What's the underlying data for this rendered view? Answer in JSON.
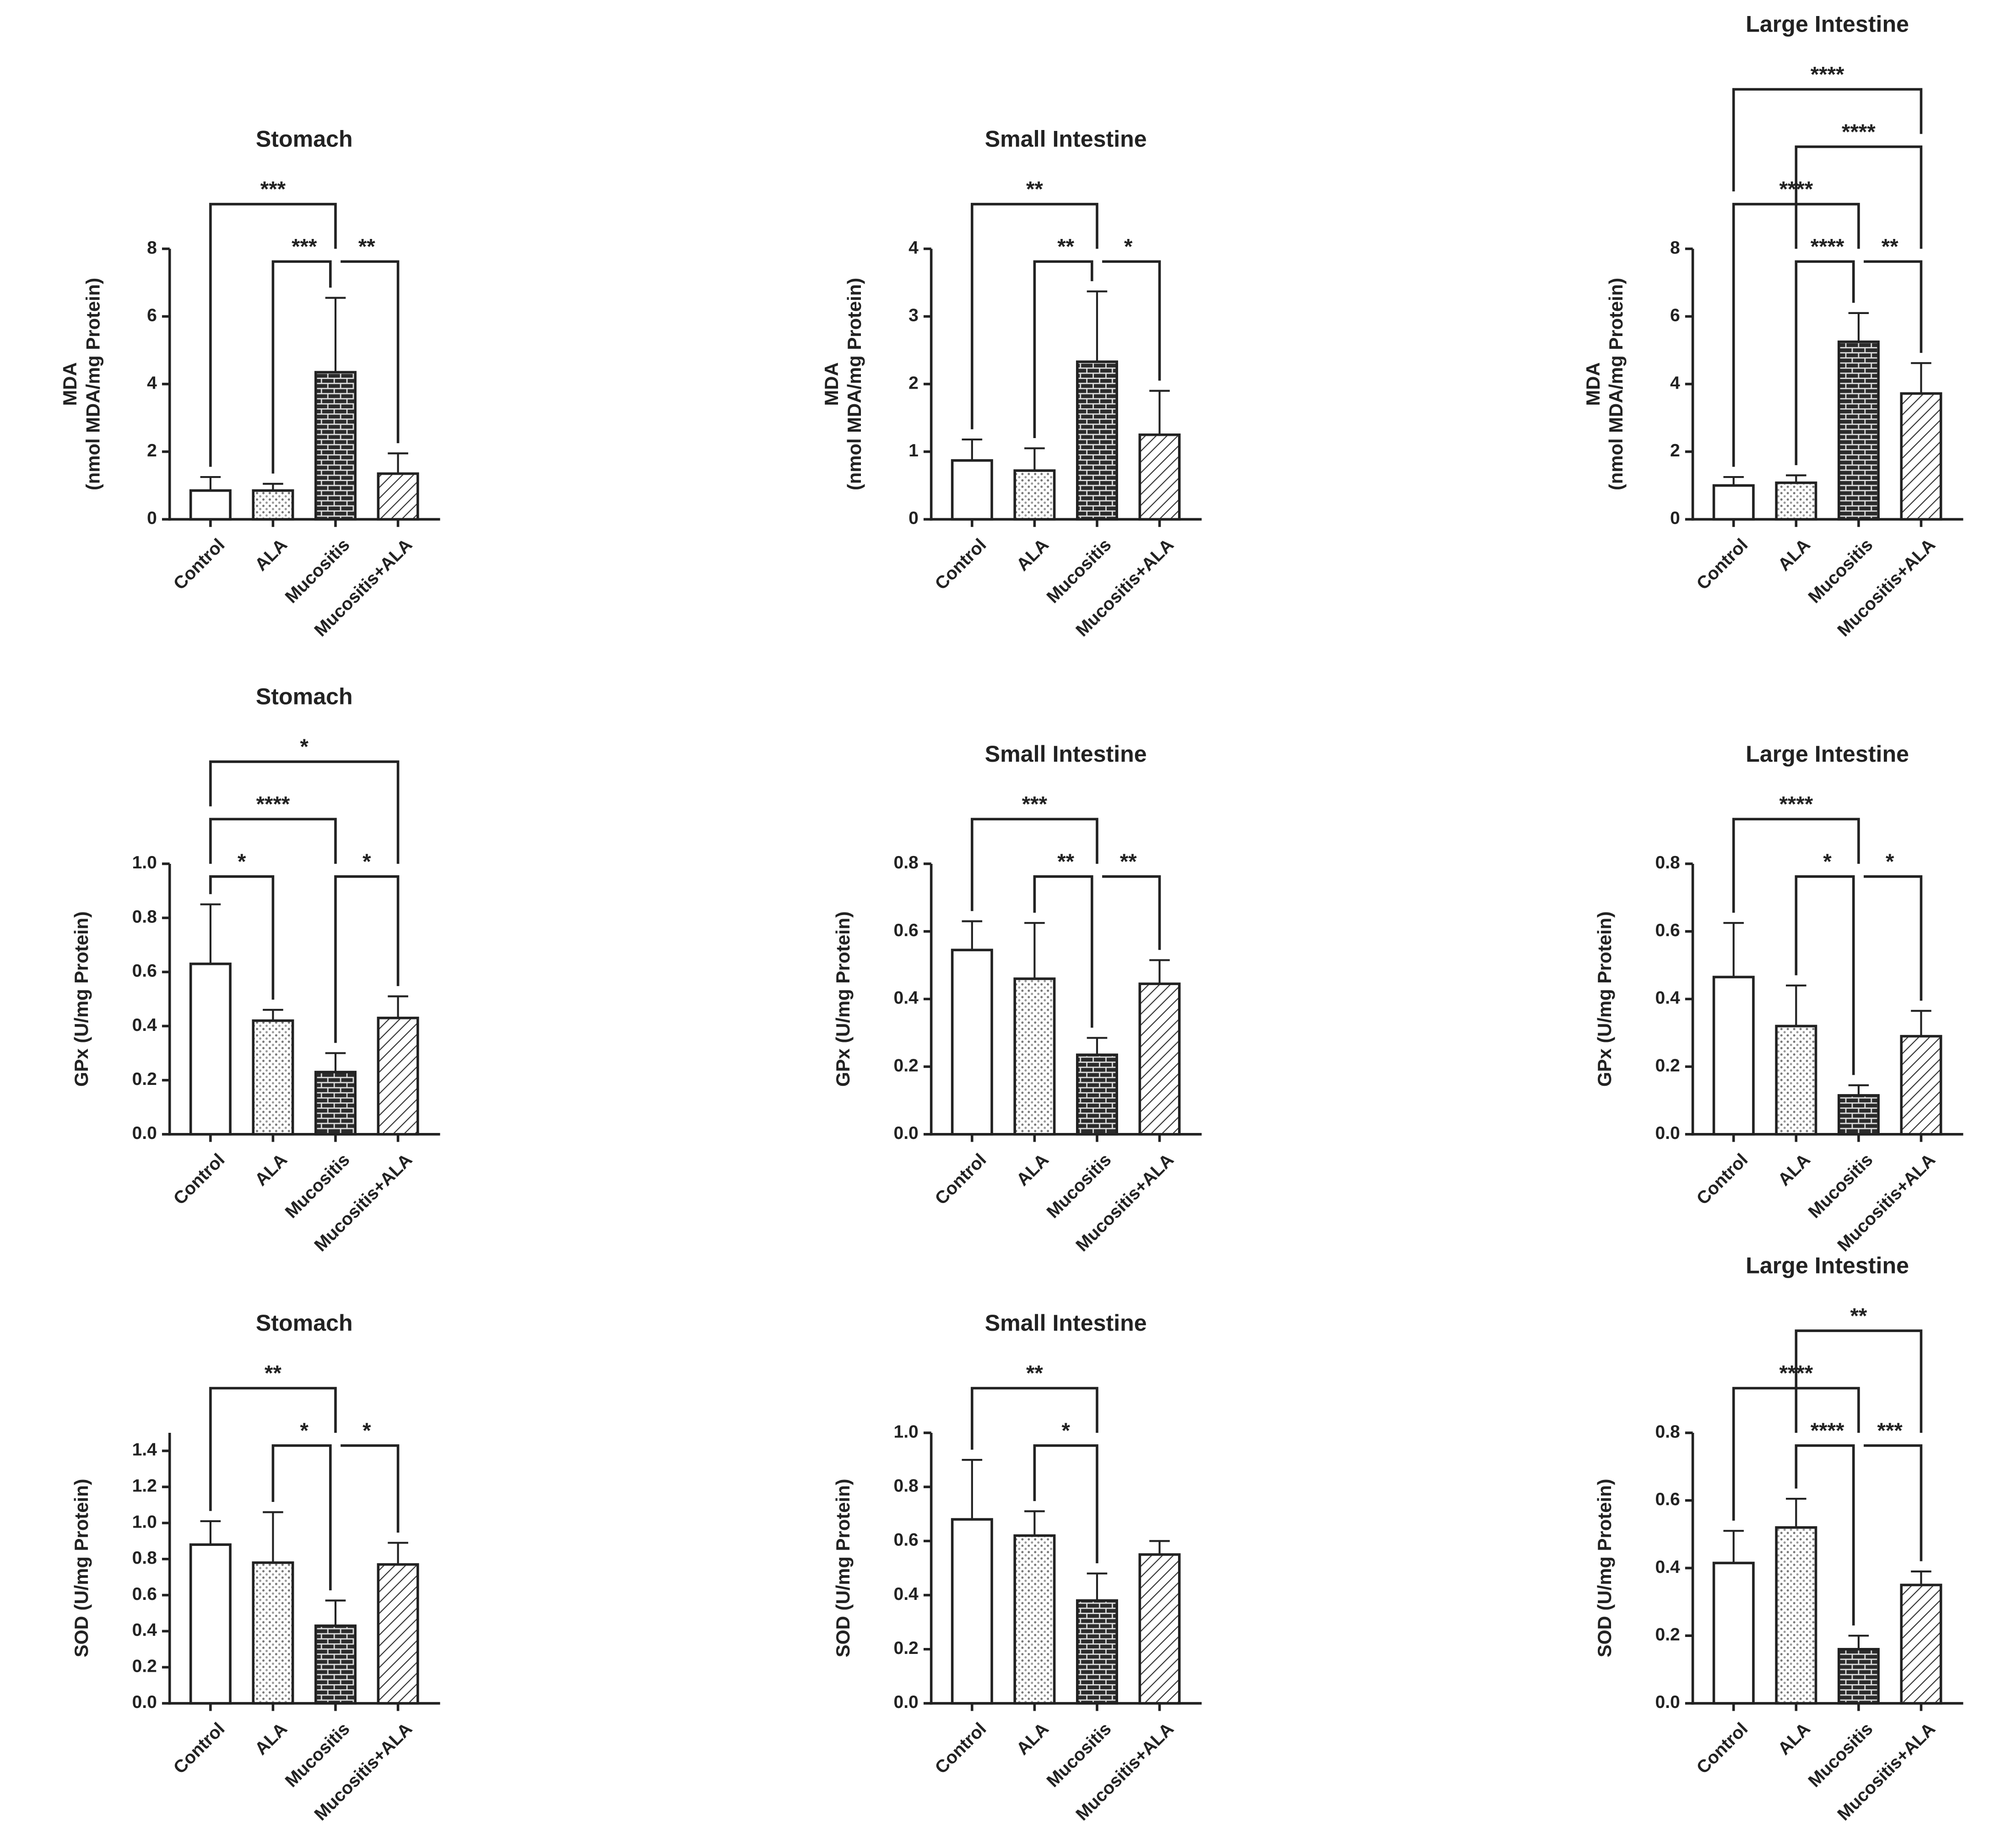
{
  "chart_data": [
    {
      "type": "bar",
      "title": "Stomach",
      "y_label": [
        "MDA",
        "(nmol MDA/mg Protein)"
      ],
      "categories": [
        "Control",
        "ALA",
        "Mucositis",
        "Mucositis+ALA"
      ],
      "values": [
        0.85,
        0.85,
        4.35,
        1.35
      ],
      "errors": [
        0.4,
        0.2,
        2.2,
        0.6
      ],
      "ylim": [
        0,
        8
      ],
      "yticks": [
        0,
        2,
        4,
        6,
        8
      ],
      "comparisons": [
        {
          "pair": [
            1,
            2
          ],
          "label": "***"
        },
        {
          "pair": [
            2,
            3
          ],
          "label": "**"
        },
        {
          "pair": [
            0,
            2
          ],
          "label": "***"
        }
      ]
    },
    {
      "type": "bar",
      "title": "Small Intestine",
      "y_label": [
        "MDA",
        "(nmol MDA/mg Protein)"
      ],
      "categories": [
        "Control",
        "ALA",
        "Mucositis",
        "Mucositis+ALA"
      ],
      "values": [
        0.87,
        0.72,
        2.33,
        1.25
      ],
      "errors": [
        0.31,
        0.33,
        1.04,
        0.65
      ],
      "ylim": [
        0,
        4
      ],
      "yticks": [
        0,
        1,
        2,
        3,
        4
      ],
      "comparisons": [
        {
          "pair": [
            1,
            2
          ],
          "label": "**"
        },
        {
          "pair": [
            2,
            3
          ],
          "label": "*"
        },
        {
          "pair": [
            0,
            2
          ],
          "label": "**"
        }
      ]
    },
    {
      "type": "bar",
      "title": "Large Intestine",
      "y_label": [
        "MDA",
        "(nmol MDA/mg Protein)"
      ],
      "categories": [
        "Control",
        "ALA",
        "Mucositis",
        "Mucositis+ALA"
      ],
      "values": [
        1.0,
        1.08,
        5.25,
        3.72
      ],
      "errors": [
        0.25,
        0.22,
        0.85,
        0.9
      ],
      "ylim": [
        0,
        8
      ],
      "yticks": [
        0,
        2,
        4,
        6,
        8
      ],
      "comparisons": [
        {
          "pair": [
            1,
            2
          ],
          "label": "****"
        },
        {
          "pair": [
            0,
            2
          ],
          "label": "****"
        },
        {
          "pair": [
            2,
            3
          ],
          "label": "**"
        },
        {
          "pair": [
            1,
            3
          ],
          "label": "****"
        },
        {
          "pair": [
            0,
            3
          ],
          "label": "****"
        }
      ]
    },
    {
      "type": "bar",
      "title": "Stomach",
      "y_label": [
        "GPx (U/mg Protein)"
      ],
      "categories": [
        "Control",
        "ALA",
        "Mucositis",
        "Mucositis+ALA"
      ],
      "values": [
        0.63,
        0.42,
        0.23,
        0.43
      ],
      "errors": [
        0.22,
        0.04,
        0.07,
        0.08
      ],
      "ylim": [
        0,
        1
      ],
      "yticks": [
        {
          "value": 0,
          "label": "0.0"
        },
        0.2,
        0.4,
        0.6,
        0.8,
        {
          "value": 1,
          "label": "1.0"
        }
      ],
      "comparisons": [
        {
          "pair": [
            0,
            1
          ],
          "label": "*"
        },
        {
          "pair": [
            2,
            3
          ],
          "label": "*"
        },
        {
          "pair": [
            0,
            2
          ],
          "label": "****"
        },
        {
          "pair": [
            0,
            3
          ],
          "label": "*"
        }
      ]
    },
    {
      "type": "bar",
      "title": "Small Intestine",
      "y_label": [
        "GPx (U/mg Protein)"
      ],
      "categories": [
        "Control",
        "ALA",
        "Mucositis",
        "Mucositis+ALA"
      ],
      "values": [
        0.545,
        0.46,
        0.235,
        0.445
      ],
      "errors": [
        0.085,
        0.165,
        0.05,
        0.07
      ],
      "ylim": [
        0,
        0.8
      ],
      "yticks": [
        {
          "value": 0,
          "label": "0.0"
        },
        0.2,
        0.4,
        0.6,
        0.8
      ],
      "comparisons": [
        {
          "pair": [
            1,
            2
          ],
          "label": "**"
        },
        {
          "pair": [
            2,
            3
          ],
          "label": "**"
        },
        {
          "pair": [
            0,
            2
          ],
          "label": "***"
        }
      ]
    },
    {
      "type": "bar",
      "title": "Large Intestine",
      "y_label": [
        "GPx (U/mg Protein)"
      ],
      "categories": [
        "Control",
        "ALA",
        "Mucositis",
        "Mucositis+ALA"
      ],
      "values": [
        0.465,
        0.32,
        0.115,
        0.29
      ],
      "errors": [
        0.16,
        0.12,
        0.03,
        0.075
      ],
      "ylim": [
        0,
        0.8
      ],
      "yticks": [
        {
          "value": 0,
          "label": "0.0"
        },
        0.2,
        0.4,
        0.6,
        0.8
      ],
      "comparisons": [
        {
          "pair": [
            1,
            2
          ],
          "label": "*"
        },
        {
          "pair": [
            2,
            3
          ],
          "label": "*"
        },
        {
          "pair": [
            0,
            2
          ],
          "label": "****"
        }
      ]
    },
    {
      "type": "bar",
      "title": "Stomach",
      "y_label": [
        "SOD (U/mg Protein)"
      ],
      "categories": [
        "Control",
        "ALA",
        "Mucositis",
        "Mucositis+ALA"
      ],
      "values": [
        0.88,
        0.78,
        0.43,
        0.77
      ],
      "errors": [
        0.13,
        0.28,
        0.14,
        0.12
      ],
      "ylim": [
        0,
        1.5
      ],
      "yticks": [
        {
          "value": 0,
          "label": "0.0"
        },
        0.2,
        0.4,
        0.6,
        0.8,
        {
          "value": 1,
          "label": "1.0"
        },
        1.2,
        1.4
      ],
      "comparisons": [
        {
          "pair": [
            1,
            2
          ],
          "label": "*"
        },
        {
          "pair": [
            2,
            3
          ],
          "label": "*"
        },
        {
          "pair": [
            0,
            2
          ],
          "label": "**"
        }
      ]
    },
    {
      "type": "bar",
      "title": "Small Intestine",
      "y_label": [
        "SOD (U/mg Protein)"
      ],
      "categories": [
        "Control",
        "ALA",
        "Mucositis",
        "Mucositis+ALA"
      ],
      "values": [
        0.68,
        0.62,
        0.38,
        0.55
      ],
      "errors": [
        0.22,
        0.09,
        0.1,
        0.05
      ],
      "ylim": [
        0,
        1
      ],
      "yticks": [
        {
          "value": 0,
          "label": "0.0"
        },
        0.2,
        0.4,
        0.6,
        0.8,
        {
          "value": 1,
          "label": "1.0"
        }
      ],
      "comparisons": [
        {
          "pair": [
            1,
            2
          ],
          "label": "*"
        },
        {
          "pair": [
            0,
            2
          ],
          "label": "**"
        }
      ]
    },
    {
      "type": "bar",
      "title": "Large Intestine",
      "y_label": [
        "SOD (U/mg Protein)"
      ],
      "categories": [
        "Control",
        "ALA",
        "Mucositis",
        "Mucositis+ALA"
      ],
      "values": [
        0.415,
        0.52,
        0.16,
        0.35
      ],
      "errors": [
        0.095,
        0.085,
        0.04,
        0.04
      ],
      "ylim": [
        0,
        0.8
      ],
      "yticks": [
        {
          "value": 0,
          "label": "0.0"
        },
        0.2,
        0.4,
        0.6,
        0.8
      ],
      "comparisons": [
        {
          "pair": [
            1,
            2
          ],
          "label": "****"
        },
        {
          "pair": [
            0,
            2
          ],
          "label": "****"
        },
        {
          "pair": [
            2,
            3
          ],
          "label": "***"
        },
        {
          "pair": [
            1,
            3
          ],
          "label": "**"
        }
      ]
    }
  ]
}
